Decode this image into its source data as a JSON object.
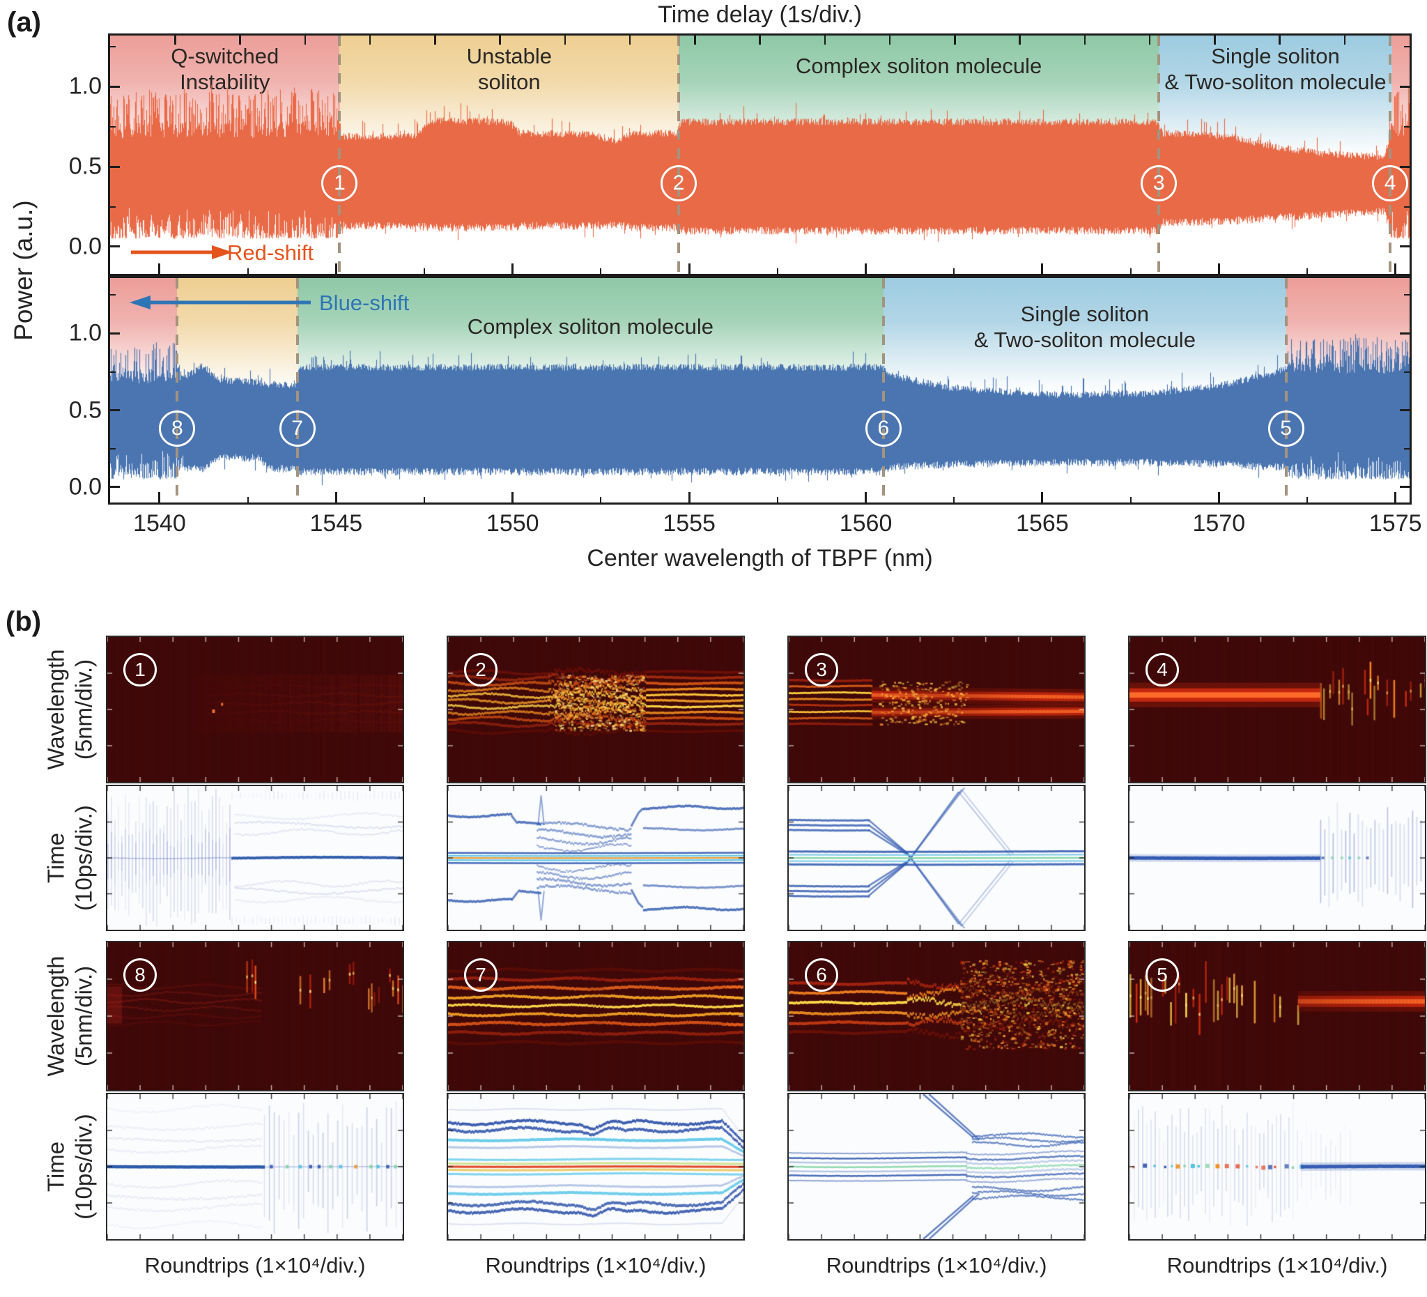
{
  "figure": {
    "panel_a_label": "(a)",
    "panel_b_label": "(b)"
  },
  "panel_a": {
    "title_top": "Time delay (1s/div.)",
    "xlabel": "Center wavelength of TBPF (nm)",
    "ylabel": "Power (a.u.)",
    "x_ticks": [
      "1540",
      "1545",
      "1550",
      "1555",
      "1560",
      "1565",
      "1570",
      "1575"
    ],
    "y_ticks": [
      "0.0",
      "0.5",
      "1.0"
    ],
    "red_shift_label": "Red-shift",
    "blue_shift_label": "Blue-shift",
    "colors": {
      "red_trace": "#e8653f",
      "blue_trace": "#4470ae",
      "red_label": "#e5531d",
      "blue_label": "#2e75b6",
      "dashed_line": "#a3937f",
      "band_pink": "#ec9e99",
      "band_yellow": "#eecf92",
      "band_green": "#8ec8a6",
      "band_blue": "#9dcbe0"
    }
  },
  "panel_b": {
    "wavelength_ylabel": [
      "Wavelength",
      "(5nm/div.)"
    ],
    "time_ylabel": [
      "Time",
      "(10ps/div.)"
    ],
    "xlabel": "Roundtrips (1×10⁴/div.)",
    "top_row_order": [
      "1",
      "2",
      "3",
      "4"
    ],
    "bottom_row_order": [
      "8",
      "7",
      "6",
      "5"
    ]
  },
  "chart_data": [
    {
      "id": "a-top",
      "type": "area",
      "title": "Output power vs TBPF center wavelength, red-shift scan",
      "xlabel": "Center wavelength of TBPF (nm)",
      "ylabel": "Power (a.u.)",
      "xlim": [
        1538.6,
        1575.4
      ],
      "ylim": [
        -0.17,
        1.32
      ],
      "x_ticks": [
        1540,
        1545,
        1550,
        1555,
        1560,
        1565,
        1570,
        1575
      ],
      "y_ticks": [
        0.0,
        0.5,
        1.0
      ],
      "top_axis": "Time delay (1s/div.)",
      "trace_color": "#e8653f",
      "marker_y_frac": 0.62,
      "regions": [
        {
          "label": [
            "Q-switched",
            "Instability"
          ],
          "x0": 1538.6,
          "x1": 1545.1,
          "band_color": "#ec9e99"
        },
        {
          "label": [
            "Unstable",
            "soliton"
          ],
          "x0": 1545.1,
          "x1": 1554.7,
          "band_color": "#eecf92"
        },
        {
          "label": [
            "Complex soliton molecule"
          ],
          "x0": 1554.7,
          "x1": 1568.3,
          "band_color": "#8ec8a6"
        },
        {
          "label": [
            "Single soliton",
            "& Two-soliton molecule"
          ],
          "x0": 1568.3,
          "x1": 1574.9,
          "band_color": "#9dcbe0"
        },
        {
          "label": [],
          "x0": 1574.9,
          "x1": 1575.4,
          "band_color": "#ec9e99"
        }
      ],
      "markers": [
        {
          "label": "1",
          "x": 1545.1
        },
        {
          "label": "2",
          "x": 1554.7
        },
        {
          "label": "3",
          "x": 1568.3
        },
        {
          "label": "4",
          "x": 1574.85
        }
      ],
      "envelope_points": [
        [
          1538.6,
          0.05,
          0.73,
          0.24
        ],
        [
          1545.05,
          0.05,
          0.73,
          0.24
        ],
        [
          1545.15,
          0.13,
          0.69,
          0.05
        ],
        [
          1547.2,
          0.13,
          0.69,
          0.08
        ],
        [
          1547.7,
          0.12,
          0.79,
          0.04
        ],
        [
          1549.9,
          0.12,
          0.78,
          0.04
        ],
        [
          1550.2,
          0.13,
          0.71,
          0.04
        ],
        [
          1552.3,
          0.13,
          0.7,
          0.05
        ],
        [
          1552.9,
          0.14,
          0.66,
          0.04
        ],
        [
          1553.4,
          0.12,
          0.71,
          0.04
        ],
        [
          1554.65,
          0.12,
          0.71,
          0.05
        ],
        [
          1554.75,
          0.1,
          0.78,
          0.04
        ],
        [
          1568.25,
          0.1,
          0.78,
          0.04
        ],
        [
          1568.4,
          0.15,
          0.71,
          0.05
        ],
        [
          1570.3,
          0.16,
          0.69,
          0.05
        ],
        [
          1571.5,
          0.18,
          0.63,
          0.04
        ],
        [
          1573.0,
          0.2,
          0.58,
          0.04
        ],
        [
          1574.7,
          0.22,
          0.56,
          0.04
        ],
        [
          1574.85,
          0.05,
          0.74,
          0.23
        ],
        [
          1575.4,
          0.05,
          0.74,
          0.23
        ]
      ]
    },
    {
      "id": "a-bottom",
      "type": "area",
      "title": "Output power vs TBPF center wavelength, blue-shift scan",
      "xlabel": "Center wavelength of TBPF (nm)",
      "ylabel": "Power (a.u.)",
      "xlim": [
        1538.6,
        1575.4
      ],
      "ylim": [
        -0.1,
        1.36
      ],
      "x_ticks": [
        1540,
        1545,
        1550,
        1555,
        1560,
        1565,
        1570,
        1575
      ],
      "y_ticks": [
        0.0,
        0.5,
        1.0
      ],
      "trace_color": "#4470ae",
      "marker_y_frac": 0.67,
      "regions": [
        {
          "label": [],
          "x0": 1538.6,
          "x1": 1540.5,
          "band_color": "#ec9e99"
        },
        {
          "label": [],
          "x0": 1540.5,
          "x1": 1543.9,
          "band_color": "#eecf92"
        },
        {
          "label": [
            "Complex soliton molecule"
          ],
          "x0": 1543.9,
          "x1": 1560.5,
          "band_color": "#8ec8a6"
        },
        {
          "label": [
            "Single soliton",
            "& Two-soliton molecule"
          ],
          "x0": 1560.5,
          "x1": 1571.9,
          "band_color": "#9dcbe0"
        },
        {
          "label": [],
          "x0": 1571.9,
          "x1": 1575.4,
          "band_color": "#ec9e99"
        }
      ],
      "markers": [
        {
          "label": "8",
          "x": 1540.5
        },
        {
          "label": "7",
          "x": 1543.9
        },
        {
          "label": "6",
          "x": 1560.5
        },
        {
          "label": "5",
          "x": 1571.9
        }
      ],
      "envelope_points": [
        [
          1538.6,
          0.05,
          0.71,
          0.22
        ],
        [
          1540.45,
          0.05,
          0.71,
          0.2
        ],
        [
          1540.6,
          0.12,
          0.7,
          0.13
        ],
        [
          1541.2,
          0.12,
          0.79,
          0.07
        ],
        [
          1541.7,
          0.19,
          0.7,
          0.04
        ],
        [
          1542.8,
          0.19,
          0.68,
          0.04
        ],
        [
          1543.1,
          0.12,
          0.67,
          0.04
        ],
        [
          1543.85,
          0.12,
          0.66,
          0.05
        ],
        [
          1543.95,
          0.1,
          0.78,
          0.04
        ],
        [
          1560.45,
          0.1,
          0.78,
          0.04
        ],
        [
          1560.7,
          0.13,
          0.73,
          0.04
        ],
        [
          1562.5,
          0.15,
          0.64,
          0.03
        ],
        [
          1565.5,
          0.16,
          0.6,
          0.03
        ],
        [
          1568.0,
          0.16,
          0.61,
          0.03
        ],
        [
          1570.0,
          0.15,
          0.66,
          0.04
        ],
        [
          1571.5,
          0.13,
          0.74,
          0.05
        ],
        [
          1571.85,
          0.13,
          0.77,
          0.06
        ],
        [
          1572.0,
          0.05,
          0.8,
          0.17
        ],
        [
          1575.4,
          0.05,
          0.77,
          0.2
        ]
      ]
    },
    {
      "id": "b-1",
      "type": "heatmap",
      "marker": "1",
      "xlabel": "Roundtrips (1×10⁴/div.)",
      "rows": [
        {
          "ylabel": "Wavelength (5nm/div.)",
          "description": "Dim broadband spectrum; weak red intensity grows after the QS-to-mode-locking transition near 40% of the scan"
        },
        {
          "ylabel": "Time (10ps/div.)",
          "description": "Q-switched burst stripes, then a continuous central pulse track with wandering satellite filaments"
        }
      ]
    },
    {
      "id": "b-2",
      "type": "heatmap",
      "marker": "2",
      "xlabel": "Roundtrips (1×10⁴/div.)",
      "rows": [
        {
          "ylabel": "Wavelength (5nm/div.)",
          "description": "Strongly fringed spectrum of a vibrating soliton molecule with a chaotic central section"
        },
        {
          "ylabel": "Time (10ps/div.)",
          "description": "Bound pulse pair at center with symmetric satellite tracks that step, oscillate and re-lock"
        }
      ]
    },
    {
      "id": "b-3",
      "type": "heatmap",
      "marker": "3",
      "xlabel": "Roundtrips (1×10⁴/div.)",
      "rows": [
        {
          "ylabel": "Wavelength (5nm/div.)",
          "description": "Sharp interference fringes collapse into two smooth red bands (stable two-soliton molecule)"
        },
        {
          "ylabel": "Time (10ps/div.)",
          "description": "Satellite pulses collide through X-shaped crossings and merge into a steady molecule"
        }
      ]
    },
    {
      "id": "b-4",
      "type": "heatmap",
      "marker": "4",
      "xlabel": "Roundtrips (1×10⁴/div.)",
      "rows": [
        {
          "ylabel": "Wavelength (5nm/div.)",
          "description": "Narrow single-soliton band that breaks into Q-switched bursts near 65% of the scan"
        },
        {
          "ylabel": "Time (10ps/div.)",
          "description": "Continuous single-pulse line replaced by periodic Q-switched stripes"
        }
      ]
    },
    {
      "id": "b-8",
      "type": "heatmap",
      "marker": "8",
      "xlabel": "Roundtrips (1×10⁴/div.)",
      "rows": [
        {
          "ylabel": "Wavelength (5nm/div.)",
          "description": "Faint fringes fade into sparse Q-switched flashes"
        },
        {
          "ylabel": "Time (10ps/div.)",
          "description": "Central pulse with breathing satellites decays into a Q-switched burst train"
        }
      ]
    },
    {
      "id": "b-7",
      "type": "heatmap",
      "marker": "7",
      "xlabel": "Roundtrips (1×10⁴/div.)",
      "rows": [
        {
          "ylabel": "Wavelength (5nm/div.)",
          "description": "Persistent bright fringe bands of a complex soliton molecule"
        },
        {
          "ylabel": "Time (10ps/div.)",
          "description": "Multi-pulse bound state with phase kinks; outer satellites converge at the scan end"
        }
      ]
    },
    {
      "id": "b-6",
      "type": "heatmap",
      "marker": "6",
      "xlabel": "Roundtrips (1×10⁴/div.)",
      "rows": [
        {
          "ylabel": "Wavelength (5nm/div.)",
          "description": "Fringe bands become wavy and dissolve into turbulent speckle"
        },
        {
          "ylabel": "Time (10ps/div.)",
          "description": "Tight pulse bundle ejects diagonal satellites that oscillate irregularly"
        }
      ]
    },
    {
      "id": "b-5",
      "type": "heatmap",
      "marker": "5",
      "xlabel": "Roundtrips (1×10⁴/div.)",
      "rows": [
        {
          "ylabel": "Wavelength (5nm/div.)",
          "description": "Q-switched burst dashes condense into a smooth single-soliton band"
        },
        {
          "ylabel": "Time (10ps/div.)",
          "description": "Burst stripes with colored center flashes settle into one continuous pulse line"
        }
      ]
    }
  ]
}
